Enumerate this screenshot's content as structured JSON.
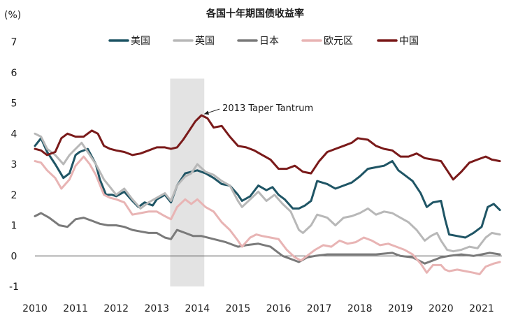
{
  "chart_data": {
    "type": "line",
    "title": "各国十年期国债收益率",
    "unit_label": "(%)",
    "xlabel": "",
    "ylabel": "",
    "xlim": [
      2010,
      2021.5
    ],
    "ylim": [
      -1,
      7
    ],
    "x_ticks": [
      2010,
      2011,
      2012,
      2013,
      2014,
      2015,
      2016,
      2017,
      2018,
      2019,
      2020,
      2021
    ],
    "x_tick_labels": [
      "2010",
      "2011",
      "2012",
      "2013",
      "2014",
      "2015",
      "2016",
      "2017",
      "2018",
      "2019",
      "2020",
      "2021"
    ],
    "y_ticks": [
      -1,
      0,
      1,
      2,
      3,
      4,
      5,
      6,
      7
    ],
    "y_tick_labels": [
      "-1",
      "0",
      "1",
      "2",
      "3",
      "4",
      "5",
      "6",
      "7"
    ],
    "shaded_region": {
      "x_start": 2013.33,
      "x_end": 2014.17,
      "color": "#e3e3e3"
    },
    "annotation": {
      "text": "2013 Taper Tantrum",
      "x": 2014.1,
      "y": 4.85
    },
    "legend": {
      "position": "top"
    },
    "series": [
      {
        "name": "美国",
        "color": "#1f5565",
        "x": [
          2010.0,
          2010.15,
          2010.3,
          2010.5,
          2010.7,
          2010.85,
          2011.0,
          2011.1,
          2011.3,
          2011.5,
          2011.6,
          2011.75,
          2011.9,
          2012.0,
          2012.2,
          2012.4,
          2012.55,
          2012.7,
          2012.9,
          2013.0,
          2013.2,
          2013.35,
          2013.5,
          2013.7,
          2013.85,
          2014.0,
          2014.2,
          2014.4,
          2014.6,
          2014.8,
          2015.0,
          2015.1,
          2015.3,
          2015.5,
          2015.7,
          2015.85,
          2016.0,
          2016.15,
          2016.35,
          2016.5,
          2016.65,
          2016.8,
          2016.95,
          2017.2,
          2017.4,
          2017.6,
          2017.8,
          2018.0,
          2018.2,
          2018.4,
          2018.6,
          2018.8,
          2018.95,
          2019.1,
          2019.3,
          2019.5,
          2019.65,
          2019.8,
          2020.0,
          2020.1,
          2020.2,
          2020.4,
          2020.6,
          2020.8,
          2021.0,
          2021.15,
          2021.3,
          2021.45
        ],
        "values": [
          3.6,
          3.85,
          3.4,
          3.0,
          2.55,
          2.7,
          3.3,
          3.4,
          3.5,
          3.0,
          2.5,
          2.0,
          2.0,
          1.95,
          2.1,
          1.8,
          1.6,
          1.75,
          1.65,
          1.85,
          2.0,
          1.75,
          2.3,
          2.7,
          2.75,
          2.8,
          2.7,
          2.55,
          2.35,
          2.3,
          2.0,
          1.8,
          1.95,
          2.3,
          2.15,
          2.25,
          2.0,
          1.85,
          1.55,
          1.55,
          1.65,
          1.8,
          2.45,
          2.35,
          2.2,
          2.3,
          2.4,
          2.6,
          2.85,
          2.9,
          2.95,
          3.1,
          2.8,
          2.65,
          2.45,
          2.05,
          1.6,
          1.75,
          1.8,
          1.2,
          0.7,
          0.65,
          0.6,
          0.75,
          0.95,
          1.6,
          1.7,
          1.5
        ]
      },
      {
        "name": "英国",
        "color": "#b8b8b8",
        "x": [
          2010.0,
          2010.15,
          2010.3,
          2010.5,
          2010.7,
          2010.85,
          2011.0,
          2011.15,
          2011.3,
          2011.5,
          2011.7,
          2011.85,
          2012.0,
          2012.2,
          2012.4,
          2012.6,
          2012.8,
          2013.0,
          2013.2,
          2013.35,
          2013.5,
          2013.7,
          2013.85,
          2014.0,
          2014.2,
          2014.4,
          2014.6,
          2014.8,
          2015.0,
          2015.1,
          2015.3,
          2015.5,
          2015.7,
          2015.9,
          2016.1,
          2016.3,
          2016.5,
          2016.6,
          2016.8,
          2016.95,
          2017.2,
          2017.4,
          2017.6,
          2017.8,
          2018.0,
          2018.2,
          2018.4,
          2018.6,
          2018.8,
          2019.0,
          2019.2,
          2019.4,
          2019.6,
          2019.75,
          2019.9,
          2020.0,
          2020.15,
          2020.3,
          2020.5,
          2020.7,
          2020.9,
          2021.1,
          2021.25,
          2021.45
        ],
        "values": [
          4.0,
          3.9,
          3.5,
          3.3,
          3.0,
          3.3,
          3.5,
          3.7,
          3.4,
          3.0,
          2.5,
          2.25,
          2.0,
          2.2,
          1.85,
          1.55,
          1.75,
          1.9,
          2.05,
          1.8,
          2.3,
          2.6,
          2.7,
          3.0,
          2.75,
          2.65,
          2.45,
          2.3,
          1.8,
          1.6,
          1.85,
          2.1,
          1.8,
          2.0,
          1.7,
          1.45,
          0.85,
          0.75,
          1.0,
          1.35,
          1.25,
          1.0,
          1.25,
          1.3,
          1.4,
          1.55,
          1.35,
          1.45,
          1.4,
          1.25,
          1.1,
          0.85,
          0.5,
          0.65,
          0.75,
          0.5,
          0.2,
          0.15,
          0.2,
          0.3,
          0.25,
          0.6,
          0.75,
          0.7
        ]
      },
      {
        "name": "日本",
        "color": "#7a7a7a",
        "x": [
          2010.0,
          2010.15,
          2010.35,
          2010.6,
          2010.8,
          2011.0,
          2011.2,
          2011.4,
          2011.6,
          2011.8,
          2012.0,
          2012.2,
          2012.4,
          2012.6,
          2012.8,
          2013.0,
          2013.2,
          2013.35,
          2013.5,
          2013.7,
          2013.9,
          2014.1,
          2014.4,
          2014.7,
          2015.0,
          2015.2,
          2015.5,
          2015.8,
          2016.0,
          2016.1,
          2016.3,
          2016.5,
          2016.7,
          2016.9,
          2017.2,
          2017.6,
          2018.0,
          2018.4,
          2018.8,
          2019.0,
          2019.3,
          2019.6,
          2019.8,
          2020.0,
          2020.2,
          2020.5,
          2020.8,
          2021.0,
          2021.2,
          2021.45
        ],
        "values": [
          1.3,
          1.4,
          1.25,
          1.0,
          0.95,
          1.2,
          1.25,
          1.15,
          1.05,
          1.0,
          1.0,
          0.95,
          0.85,
          0.8,
          0.75,
          0.75,
          0.6,
          0.55,
          0.85,
          0.75,
          0.65,
          0.65,
          0.55,
          0.45,
          0.3,
          0.35,
          0.4,
          0.3,
          0.1,
          0.0,
          -0.1,
          -0.2,
          -0.05,
          0.0,
          0.05,
          0.05,
          0.05,
          0.05,
          0.1,
          0.0,
          -0.05,
          -0.25,
          -0.15,
          -0.05,
          0.0,
          0.05,
          0.0,
          0.05,
          0.1,
          0.05
        ]
      },
      {
        "name": "欧元区",
        "color": "#e8b4b4",
        "x": [
          2010.0,
          2010.15,
          2010.3,
          2010.5,
          2010.65,
          2010.85,
          2011.0,
          2011.2,
          2011.35,
          2011.5,
          2011.7,
          2011.85,
          2012.0,
          2012.2,
          2012.4,
          2012.6,
          2012.8,
          2013.0,
          2013.2,
          2013.35,
          2013.5,
          2013.7,
          2013.85,
          2014.0,
          2014.2,
          2014.4,
          2014.6,
          2014.8,
          2015.0,
          2015.1,
          2015.3,
          2015.45,
          2015.6,
          2015.8,
          2016.0,
          2016.2,
          2016.4,
          2016.55,
          2016.75,
          2016.9,
          2017.1,
          2017.3,
          2017.5,
          2017.7,
          2017.9,
          2018.1,
          2018.3,
          2018.5,
          2018.7,
          2018.9,
          2019.1,
          2019.3,
          2019.5,
          2019.65,
          2019.8,
          2020.0,
          2020.1,
          2020.2,
          2020.4,
          2020.6,
          2020.8,
          2020.95,
          2021.1,
          2021.3,
          2021.45
        ],
        "values": [
          3.1,
          3.05,
          2.8,
          2.55,
          2.2,
          2.5,
          2.95,
          3.25,
          3.0,
          2.65,
          2.0,
          1.9,
          1.85,
          1.75,
          1.35,
          1.4,
          1.45,
          1.45,
          1.3,
          1.2,
          1.6,
          1.85,
          1.7,
          1.85,
          1.6,
          1.45,
          1.1,
          0.85,
          0.5,
          0.3,
          0.6,
          0.7,
          0.65,
          0.6,
          0.55,
          0.2,
          -0.05,
          -0.15,
          0.05,
          0.2,
          0.35,
          0.3,
          0.5,
          0.4,
          0.45,
          0.6,
          0.5,
          0.35,
          0.4,
          0.3,
          0.2,
          0.05,
          -0.25,
          -0.55,
          -0.3,
          -0.3,
          -0.45,
          -0.5,
          -0.45,
          -0.5,
          -0.55,
          -0.6,
          -0.35,
          -0.25,
          -0.2
        ]
      },
      {
        "name": "中国",
        "color": "#7a1a1a",
        "x": [
          2010.0,
          2010.15,
          2010.3,
          2010.5,
          2010.65,
          2010.8,
          2011.0,
          2011.2,
          2011.4,
          2011.55,
          2011.7,
          2011.85,
          2012.0,
          2012.2,
          2012.4,
          2012.6,
          2012.8,
          2013.0,
          2013.2,
          2013.35,
          2013.5,
          2013.65,
          2013.8,
          2013.95,
          2014.1,
          2014.25,
          2014.4,
          2014.6,
          2014.8,
          2015.0,
          2015.2,
          2015.4,
          2015.6,
          2015.8,
          2016.0,
          2016.2,
          2016.4,
          2016.6,
          2016.8,
          2017.0,
          2017.2,
          2017.4,
          2017.6,
          2017.8,
          2017.95,
          2018.2,
          2018.4,
          2018.6,
          2018.8,
          2019.0,
          2019.2,
          2019.4,
          2019.6,
          2019.8,
          2020.0,
          2020.15,
          2020.3,
          2020.5,
          2020.7,
          2020.9,
          2021.1,
          2021.25,
          2021.45
        ],
        "values": [
          3.5,
          3.45,
          3.3,
          3.4,
          3.85,
          4.0,
          3.9,
          3.9,
          4.1,
          4.0,
          3.6,
          3.5,
          3.45,
          3.4,
          3.3,
          3.35,
          3.45,
          3.55,
          3.55,
          3.5,
          3.55,
          3.8,
          4.1,
          4.4,
          4.6,
          4.5,
          4.2,
          4.25,
          3.9,
          3.6,
          3.55,
          3.45,
          3.3,
          3.15,
          2.85,
          2.85,
          2.95,
          2.75,
          2.7,
          3.1,
          3.4,
          3.5,
          3.6,
          3.7,
          3.85,
          3.8,
          3.6,
          3.5,
          3.45,
          3.25,
          3.25,
          3.35,
          3.2,
          3.15,
          3.1,
          2.8,
          2.5,
          2.75,
          3.05,
          3.15,
          3.25,
          3.15,
          3.1
        ]
      }
    ]
  }
}
